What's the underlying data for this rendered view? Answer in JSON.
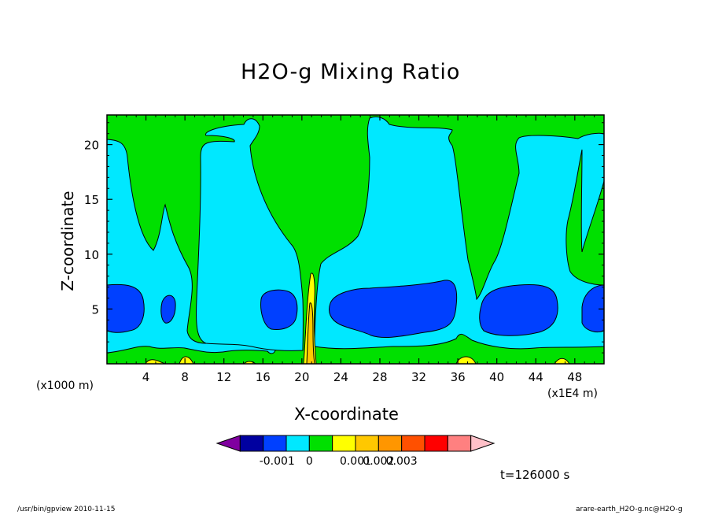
{
  "chart_data": {
    "type": "heatmap",
    "title": "H2O-g Mixing Ratio",
    "xlabel": "X-coordinate",
    "ylabel": "Z-coordinate",
    "x_units": "(x1000 m)",
    "x_multiplier": "(x1E4 m)",
    "x_ticks": [
      "4",
      "8",
      "12",
      "16",
      "20",
      "24",
      "28",
      "32",
      "36",
      "40",
      "44",
      "48"
    ],
    "y_ticks": [
      "5",
      "10",
      "15",
      "20"
    ],
    "xlim": [
      0,
      51
    ],
    "ylim": [
      0,
      22.7
    ],
    "colorbar": {
      "colors": [
        "#8000a0",
        "#0000a0",
        "#0040ff",
        "#00e8ff",
        "#00e000",
        "#ffff00",
        "#ffc800",
        "#ff9600",
        "#ff5000",
        "#ff0000",
        "#ff8080",
        "#ffc0c8"
      ],
      "labels": [
        "-0.001",
        "0",
        "0.001",
        "0.002",
        "0.003"
      ]
    },
    "contour_fill": {
      "background": "#00e000",
      "moist": "#00e8ff",
      "dry": "#0040ff",
      "surface": "#ffff00",
      "peak": "#ffc800"
    },
    "time_label": "t=126000 s"
  },
  "footer": {
    "left": "/usr/bin/gpview  2010-11-15",
    "right": "arare-earth_H2O-g.nc@H2O-g"
  }
}
